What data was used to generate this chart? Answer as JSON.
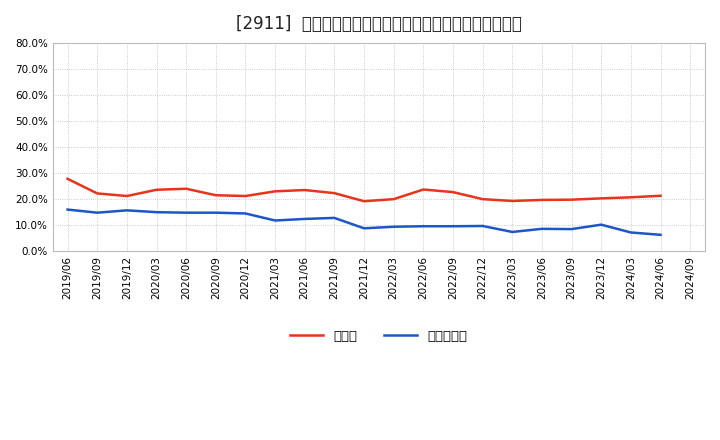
{
  "title": "[2911]  現預金、有利子負債の総資産に対する比率の推移",
  "x_labels": [
    "2019/06",
    "2019/09",
    "2019/12",
    "2020/03",
    "2020/06",
    "2020/09",
    "2020/12",
    "2021/03",
    "2021/06",
    "2021/09",
    "2021/12",
    "2022/03",
    "2022/06",
    "2022/09",
    "2022/12",
    "2023/03",
    "2023/06",
    "2023/09",
    "2023/12",
    "2024/03",
    "2024/06",
    "2024/09"
  ],
  "cash_values": [
    0.278,
    0.222,
    0.212,
    0.236,
    0.24,
    0.215,
    0.212,
    0.23,
    0.235,
    0.223,
    0.192,
    0.2,
    0.237,
    0.227,
    0.2,
    0.193,
    0.197,
    0.198,
    0.203,
    0.207,
    0.213,
    null
  ],
  "debt_values": [
    0.16,
    0.148,
    0.157,
    0.15,
    0.148,
    0.148,
    0.145,
    0.118,
    0.124,
    0.128,
    0.088,
    0.094,
    0.096,
    0.096,
    0.097,
    0.074,
    0.086,
    0.085,
    0.102,
    0.072,
    0.063,
    null
  ],
  "cash_color": "#e8341c",
  "debt_color": "#1c56c8",
  "legend_cash": "現預金",
  "legend_debt": "有利子負債",
  "ylim": [
    0.0,
    0.8
  ],
  "yticks": [
    0.0,
    0.1,
    0.2,
    0.3,
    0.4,
    0.5,
    0.6,
    0.7,
    0.8
  ],
  "background_color": "#ffffff",
  "plot_bg_color": "#ffffff",
  "grid_color": "#bbbbbb",
  "title_fontsize": 12,
  "label_fontsize": 7.5,
  "legend_fontsize": 9.5
}
